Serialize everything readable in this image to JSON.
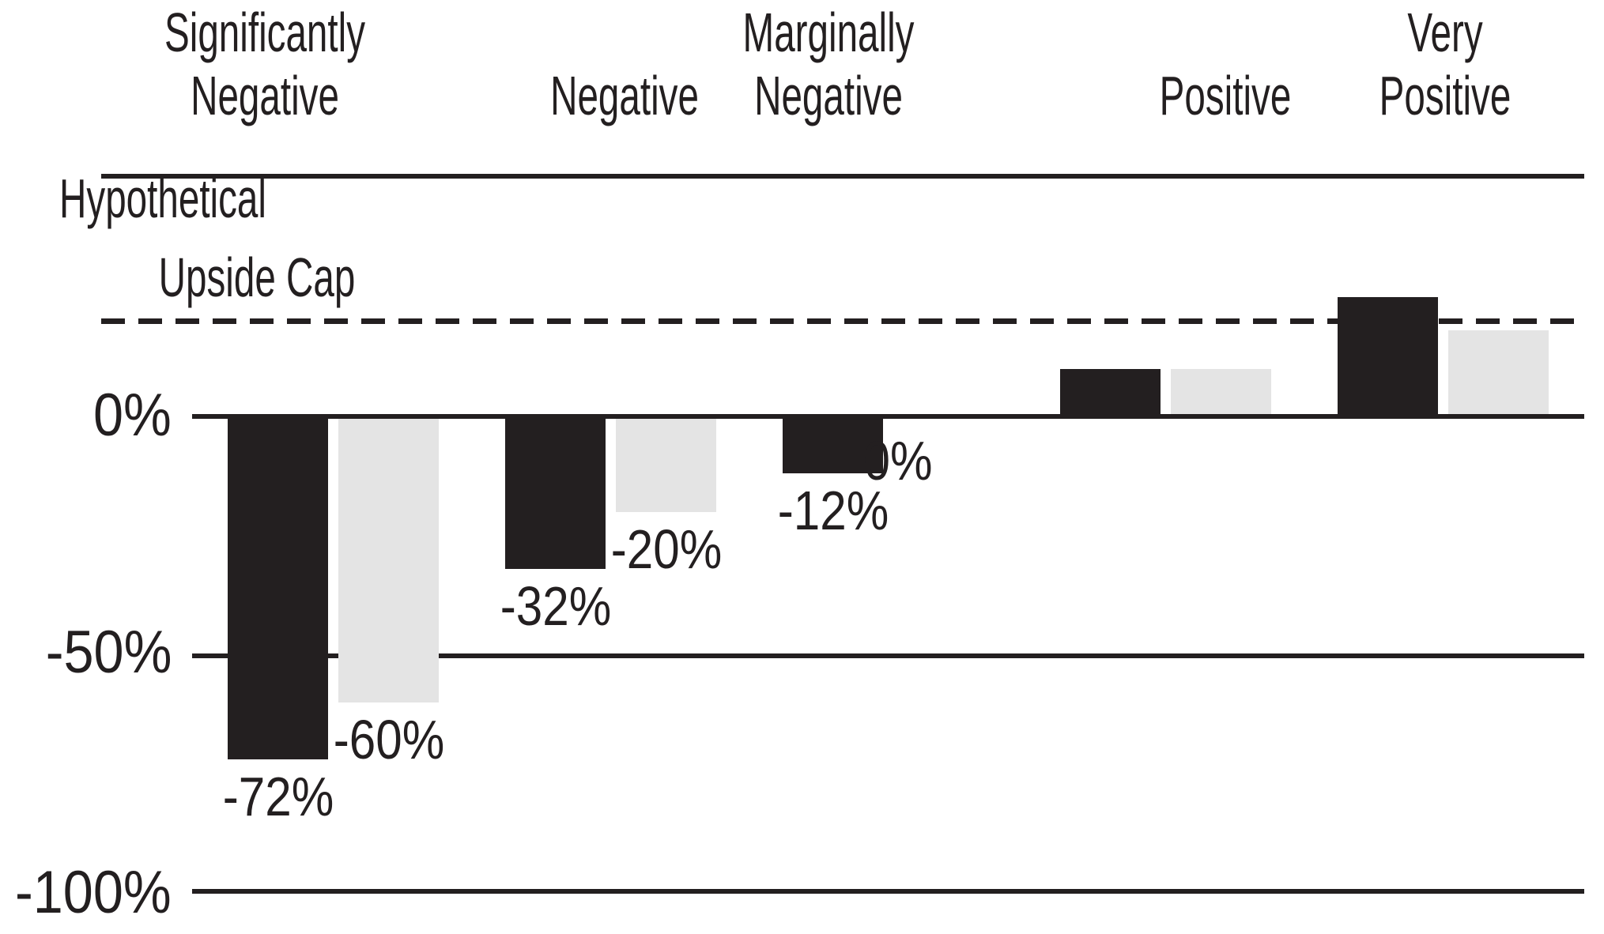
{
  "chart_data": {
    "type": "bar",
    "title": "",
    "legend": null,
    "categories": [
      {
        "line1": "Significantly",
        "line2": "Negative"
      },
      {
        "line1": "",
        "line2": "Negative"
      },
      {
        "line1": "Marginally",
        "line2": "Negative"
      },
      {
        "line1": "",
        "line2": "Positive"
      },
      {
        "line1": "Very",
        "line2": "Positive"
      }
    ],
    "series": [
      {
        "name": "dark-bars",
        "color": "#231f20",
        "values": [
          -72,
          -32,
          -12,
          10,
          25
        ],
        "labels": [
          "-72%",
          "-32%",
          "-12%",
          "",
          ""
        ]
      },
      {
        "name": "light-bars",
        "color": "#e4e4e4",
        "values": [
          -60,
          -20,
          0,
          10,
          18
        ],
        "labels": [
          "-60%",
          "-20%",
          "0%",
          "",
          ""
        ]
      }
    ],
    "y_axis": {
      "ticks": [
        {
          "label": "0%",
          "value": 0
        },
        {
          "label": "-50%",
          "value": -50
        },
        {
          "label": "-100%",
          "value": -100
        }
      ]
    },
    "cap_annotation": {
      "line1": "Hypothetical",
      "line2": "Upside Cap",
      "value_pct": 20
    },
    "ylim": [
      -100,
      30
    ],
    "grid": "horizontal solid lines at 0, -50, -100; dashed line at upside cap",
    "colors": {
      "dark_bar": "#231f20",
      "light_bar": "#e4e4e4",
      "line": "#231f20",
      "text": "#231f20",
      "background": "#ffffff"
    }
  }
}
